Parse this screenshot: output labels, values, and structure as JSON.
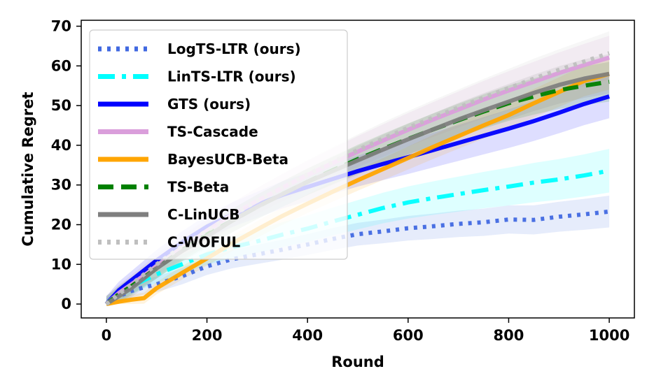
{
  "chart_data": {
    "type": "line",
    "title": "",
    "xlabel": "Round",
    "ylabel": "Cumulative Regret",
    "xlim": [
      -50,
      1050
    ],
    "ylim": [
      -3.5,
      71.5
    ],
    "xticks": [
      0,
      200,
      400,
      600,
      800,
      1000
    ],
    "yticks": [
      0,
      10,
      20,
      30,
      40,
      50,
      60,
      70
    ],
    "x": [
      0,
      25,
      50,
      75,
      100,
      150,
      200,
      250,
      300,
      350,
      400,
      450,
      500,
      550,
      600,
      650,
      700,
      750,
      800,
      850,
      900,
      950,
      1000
    ],
    "series": [
      {
        "name": "LogTS-LTR (ours)",
        "color": "#4169e1",
        "dash": "dotted",
        "values": [
          0,
          2.0,
          3.3,
          4.2,
          5.0,
          7.0,
          9.5,
          11.3,
          12.5,
          13.7,
          15.0,
          16.4,
          17.6,
          18.3,
          19.1,
          19.6,
          20.2,
          20.6,
          21.3,
          21.2,
          22.0,
          22.6,
          23.3
        ],
        "band": [
          1.5,
          4.0
        ]
      },
      {
        "name": "LinTS-LTR (ours)",
        "color": "#00ffff",
        "dash": "dashdot",
        "values": [
          0,
          2.5,
          4.5,
          6.0,
          7.5,
          10.0,
          12.5,
          14.3,
          15.8,
          17.5,
          19.0,
          20.8,
          22.5,
          24.2,
          25.6,
          26.7,
          27.7,
          28.7,
          29.6,
          30.6,
          31.4,
          32.4,
          33.6
        ],
        "band": [
          1.5,
          5.5
        ]
      },
      {
        "name": "GTS (ours)",
        "color": "#0000ff",
        "dash": "solid",
        "values": [
          0,
          3.5,
          6.0,
          8.5,
          11.0,
          15.5,
          19.5,
          22.5,
          25.0,
          27.5,
          29.5,
          31.5,
          33.5,
          35.3,
          37.0,
          38.8,
          40.6,
          42.4,
          44.2,
          46.1,
          48.2,
          50.4,
          52.3
        ],
        "band": [
          2.0,
          5.5
        ]
      },
      {
        "name": "TS-Cascade",
        "color": "#da9edb",
        "dash": "solid",
        "values": [
          0,
          2.8,
          5.0,
          7.2,
          9.5,
          14.0,
          18.5,
          22.5,
          26.0,
          29.3,
          32.5,
          35.5,
          38.4,
          41.2,
          43.9,
          46.5,
          49.0,
          51.5,
          53.8,
          56.0,
          58.2,
          60.2,
          62.1
        ],
        "band": [
          2.0,
          5.5
        ]
      },
      {
        "name": "BayesUCB-Beta",
        "color": "#ffa500",
        "dash": "solid",
        "values": [
          0,
          0.6,
          1.1,
          1.5,
          4.0,
          7.8,
          11.5,
          15.3,
          18.8,
          22.2,
          25.3,
          28.3,
          31.2,
          34.0,
          36.8,
          39.6,
          42.3,
          45.0,
          47.6,
          50.6,
          53.4,
          56.2,
          58.0
        ],
        "band": [
          1.0,
          4.0
        ]
      },
      {
        "name": "TS-Beta",
        "color": "#008000",
        "dash": "dashed",
        "values": [
          0,
          2.5,
          4.5,
          6.8,
          9.0,
          13.5,
          17.5,
          21.0,
          24.5,
          27.7,
          30.8,
          33.7,
          36.5,
          39.1,
          41.6,
          44.0,
          46.3,
          48.5,
          50.6,
          52.3,
          53.9,
          55.0,
          56.0
        ],
        "band": [
          2.0,
          5.0
        ]
      },
      {
        "name": "C-LinUCB",
        "color": "#7f7f7f",
        "dash": "solid",
        "values": [
          0,
          2.0,
          4.0,
          6.5,
          9.0,
          13.3,
          17.0,
          21.0,
          24.5,
          27.7,
          30.8,
          33.5,
          36.2,
          38.9,
          41.5,
          44.0,
          46.5,
          48.8,
          51.0,
          53.2,
          55.2,
          56.8,
          58.0
        ],
        "band": [
          2.0,
          5.0
        ]
      },
      {
        "name": "C-WOFUL",
        "color": "#bfbfbf",
        "dash": "dotted",
        "values": [
          0,
          2.5,
          5.0,
          7.5,
          10.0,
          14.5,
          18.5,
          22.3,
          26.0,
          29.4,
          32.7,
          35.8,
          38.8,
          41.7,
          44.4,
          47.0,
          49.5,
          52.0,
          54.4,
          56.8,
          59.0,
          61.1,
          63.2
        ],
        "band": [
          2.0,
          5.5
        ]
      }
    ],
    "legend_position": "top-left",
    "grid": false
  }
}
